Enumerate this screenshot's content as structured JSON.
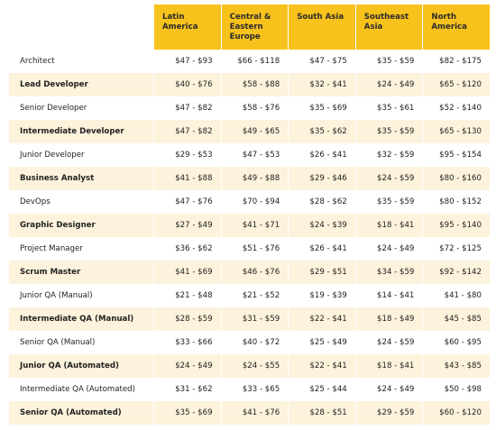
{
  "table": {
    "columns": [
      "Latin America",
      "Central & Eastern Europe",
      "South Asia",
      "Southeast Asia",
      "North America"
    ],
    "rows": [
      [
        "Architect",
        "$47 - $93",
        "$66 - $118",
        "$47 - $75",
        "$35 - $59",
        "$82 - $175"
      ],
      [
        "Lead Developer",
        "$40 - $76",
        "$58 - $88",
        "$32 - $41",
        "$24 - $49",
        "$65 - $120"
      ],
      [
        "Senior Developer",
        "$47 - $82",
        "$58 - $76",
        "$35 - $69",
        "$35 - $61",
        "$52 - $140"
      ],
      [
        "Intermediate Developer",
        "$47 - $82",
        "$49 - $65",
        "$35 - $62",
        "$35 - $59",
        "$65 - $130"
      ],
      [
        "Junior Developer",
        "$29 - $53",
        "$47 - $53",
        "$26 - $41",
        "$32 - $59",
        "$95 - $154"
      ],
      [
        "Business Analyst",
        "$41 - $88",
        "$49 - $88",
        "$29 - $46",
        "$24 - $59",
        "$80 - $160"
      ],
      [
        "DevOps",
        "$47 - $76",
        "$70 - $94",
        "$28 - $62",
        "$35 - $59",
        "$80 - $152"
      ],
      [
        "Graphic Designer",
        "$27 - $49",
        "$41 - $71",
        "$24 - $39",
        "$18 - $41",
        "$95 - $140"
      ],
      [
        "Project Manager",
        "$36 - $62",
        "$51 - $76",
        "$26 - $41",
        "$24 - $49",
        "$72 - $125"
      ],
      [
        "Scrum Master",
        "$41 - $69",
        "$46 - $76",
        "$29 - $51",
        "$34 - $59",
        "$92 - $142"
      ],
      [
        "Junior QA (Manual)",
        "$21 - $48",
        "$21 - $52",
        "$19 - $39",
        "$14 - $41",
        "$41 - $80"
      ],
      [
        "Intermediate QA (Manual)",
        "$28 - $59",
        "$31 - $59",
        "$22 - $41",
        "$18 - $49",
        "$45 - $85"
      ],
      [
        "Senior QA (Manual)",
        "$33 - $66",
        "$40 - $72",
        "$25 - $49",
        "$24 - $59",
        "$60 - $95"
      ],
      [
        "Junior QA (Automated)",
        "$24 - $49",
        "$24 - $55",
        "$22 - $41",
        "$18 - $41",
        "$43 - $85"
      ],
      [
        "Intermediate QA (Automated)",
        "$31 - $62",
        "$33 - $65",
        "$25 - $44",
        "$24 - $49",
        "$50 - $98"
      ],
      [
        "Senior QA (Automated)",
        "$35 - $69",
        "$41 - $76",
        "$28 - $51",
        "$29 - $59",
        "$60 - $120"
      ]
    ]
  }
}
